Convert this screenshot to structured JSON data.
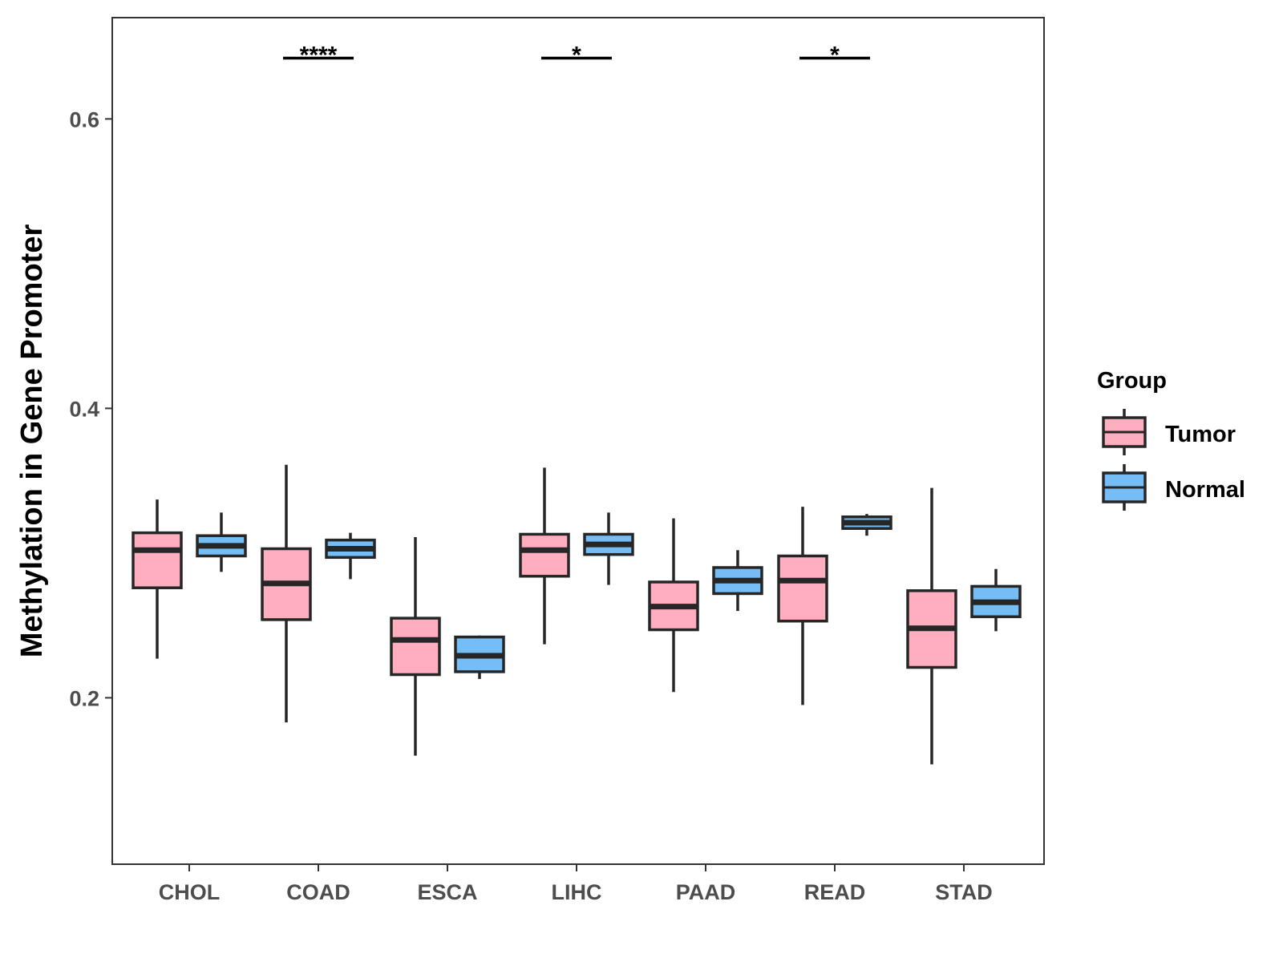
{
  "chart_data": {
    "type": "boxplot",
    "ylabel": "Methylation in Gene Promoter",
    "xlabel": "",
    "ylim": [
      0.085,
      0.67
    ],
    "yticks": [
      0.2,
      0.4,
      0.6
    ],
    "ytick_labels": [
      "0.2",
      "0.4",
      "0.6"
    ],
    "categories": [
      "CHOL",
      "COAD",
      "ESCA",
      "LIHC",
      "PAAD",
      "READ",
      "STAD"
    ],
    "legend": {
      "title": "Group",
      "entries": [
        {
          "name": "Tumor",
          "color": "#FFAEC0"
        },
        {
          "name": "Normal",
          "color": "#74BDF5"
        }
      ]
    },
    "series": [
      {
        "name": "Tumor",
        "color": "#FFAEC0",
        "boxes": [
          {
            "category": "CHOL",
            "min": 0.227,
            "q1": 0.276,
            "median": 0.302,
            "q3": 0.314,
            "max": 0.337
          },
          {
            "category": "COAD",
            "min": 0.183,
            "q1": 0.254,
            "median": 0.279,
            "q3": 0.303,
            "max": 0.361
          },
          {
            "category": "ESCA",
            "min": 0.16,
            "q1": 0.216,
            "median": 0.24,
            "q3": 0.255,
            "max": 0.311
          },
          {
            "category": "LIHC",
            "min": 0.237,
            "q1": 0.284,
            "median": 0.302,
            "q3": 0.313,
            "max": 0.359
          },
          {
            "category": "PAAD",
            "min": 0.204,
            "q1": 0.247,
            "median": 0.263,
            "q3": 0.28,
            "max": 0.324
          },
          {
            "category": "READ",
            "min": 0.195,
            "q1": 0.253,
            "median": 0.281,
            "q3": 0.298,
            "max": 0.332
          },
          {
            "category": "STAD",
            "min": 0.154,
            "q1": 0.221,
            "median": 0.248,
            "q3": 0.274,
            "max": 0.345
          }
        ]
      },
      {
        "name": "Normal",
        "color": "#74BDF5",
        "boxes": [
          {
            "category": "CHOL",
            "min": 0.287,
            "q1": 0.298,
            "median": 0.305,
            "q3": 0.312,
            "max": 0.328
          },
          {
            "category": "COAD",
            "min": 0.282,
            "q1": 0.297,
            "median": 0.303,
            "q3": 0.309,
            "max": 0.314
          },
          {
            "category": "ESCA",
            "min": 0.213,
            "q1": 0.218,
            "median": 0.229,
            "q3": 0.242,
            "max": 0.243
          },
          {
            "category": "LIHC",
            "min": 0.278,
            "q1": 0.299,
            "median": 0.306,
            "q3": 0.313,
            "max": 0.328
          },
          {
            "category": "PAAD",
            "min": 0.26,
            "q1": 0.272,
            "median": 0.281,
            "q3": 0.29,
            "max": 0.302
          },
          {
            "category": "READ",
            "min": 0.312,
            "q1": 0.317,
            "median": 0.321,
            "q3": 0.325,
            "max": 0.327
          },
          {
            "category": "STAD",
            "min": 0.246,
            "q1": 0.256,
            "median": 0.266,
            "q3": 0.277,
            "max": 0.289
          }
        ]
      }
    ],
    "significance": [
      {
        "category": "COAD",
        "label": "****",
        "y": 0.642
      },
      {
        "category": "LIHC",
        "label": "*",
        "y": 0.642
      },
      {
        "category": "READ",
        "label": "*",
        "y": 0.642
      }
    ]
  }
}
